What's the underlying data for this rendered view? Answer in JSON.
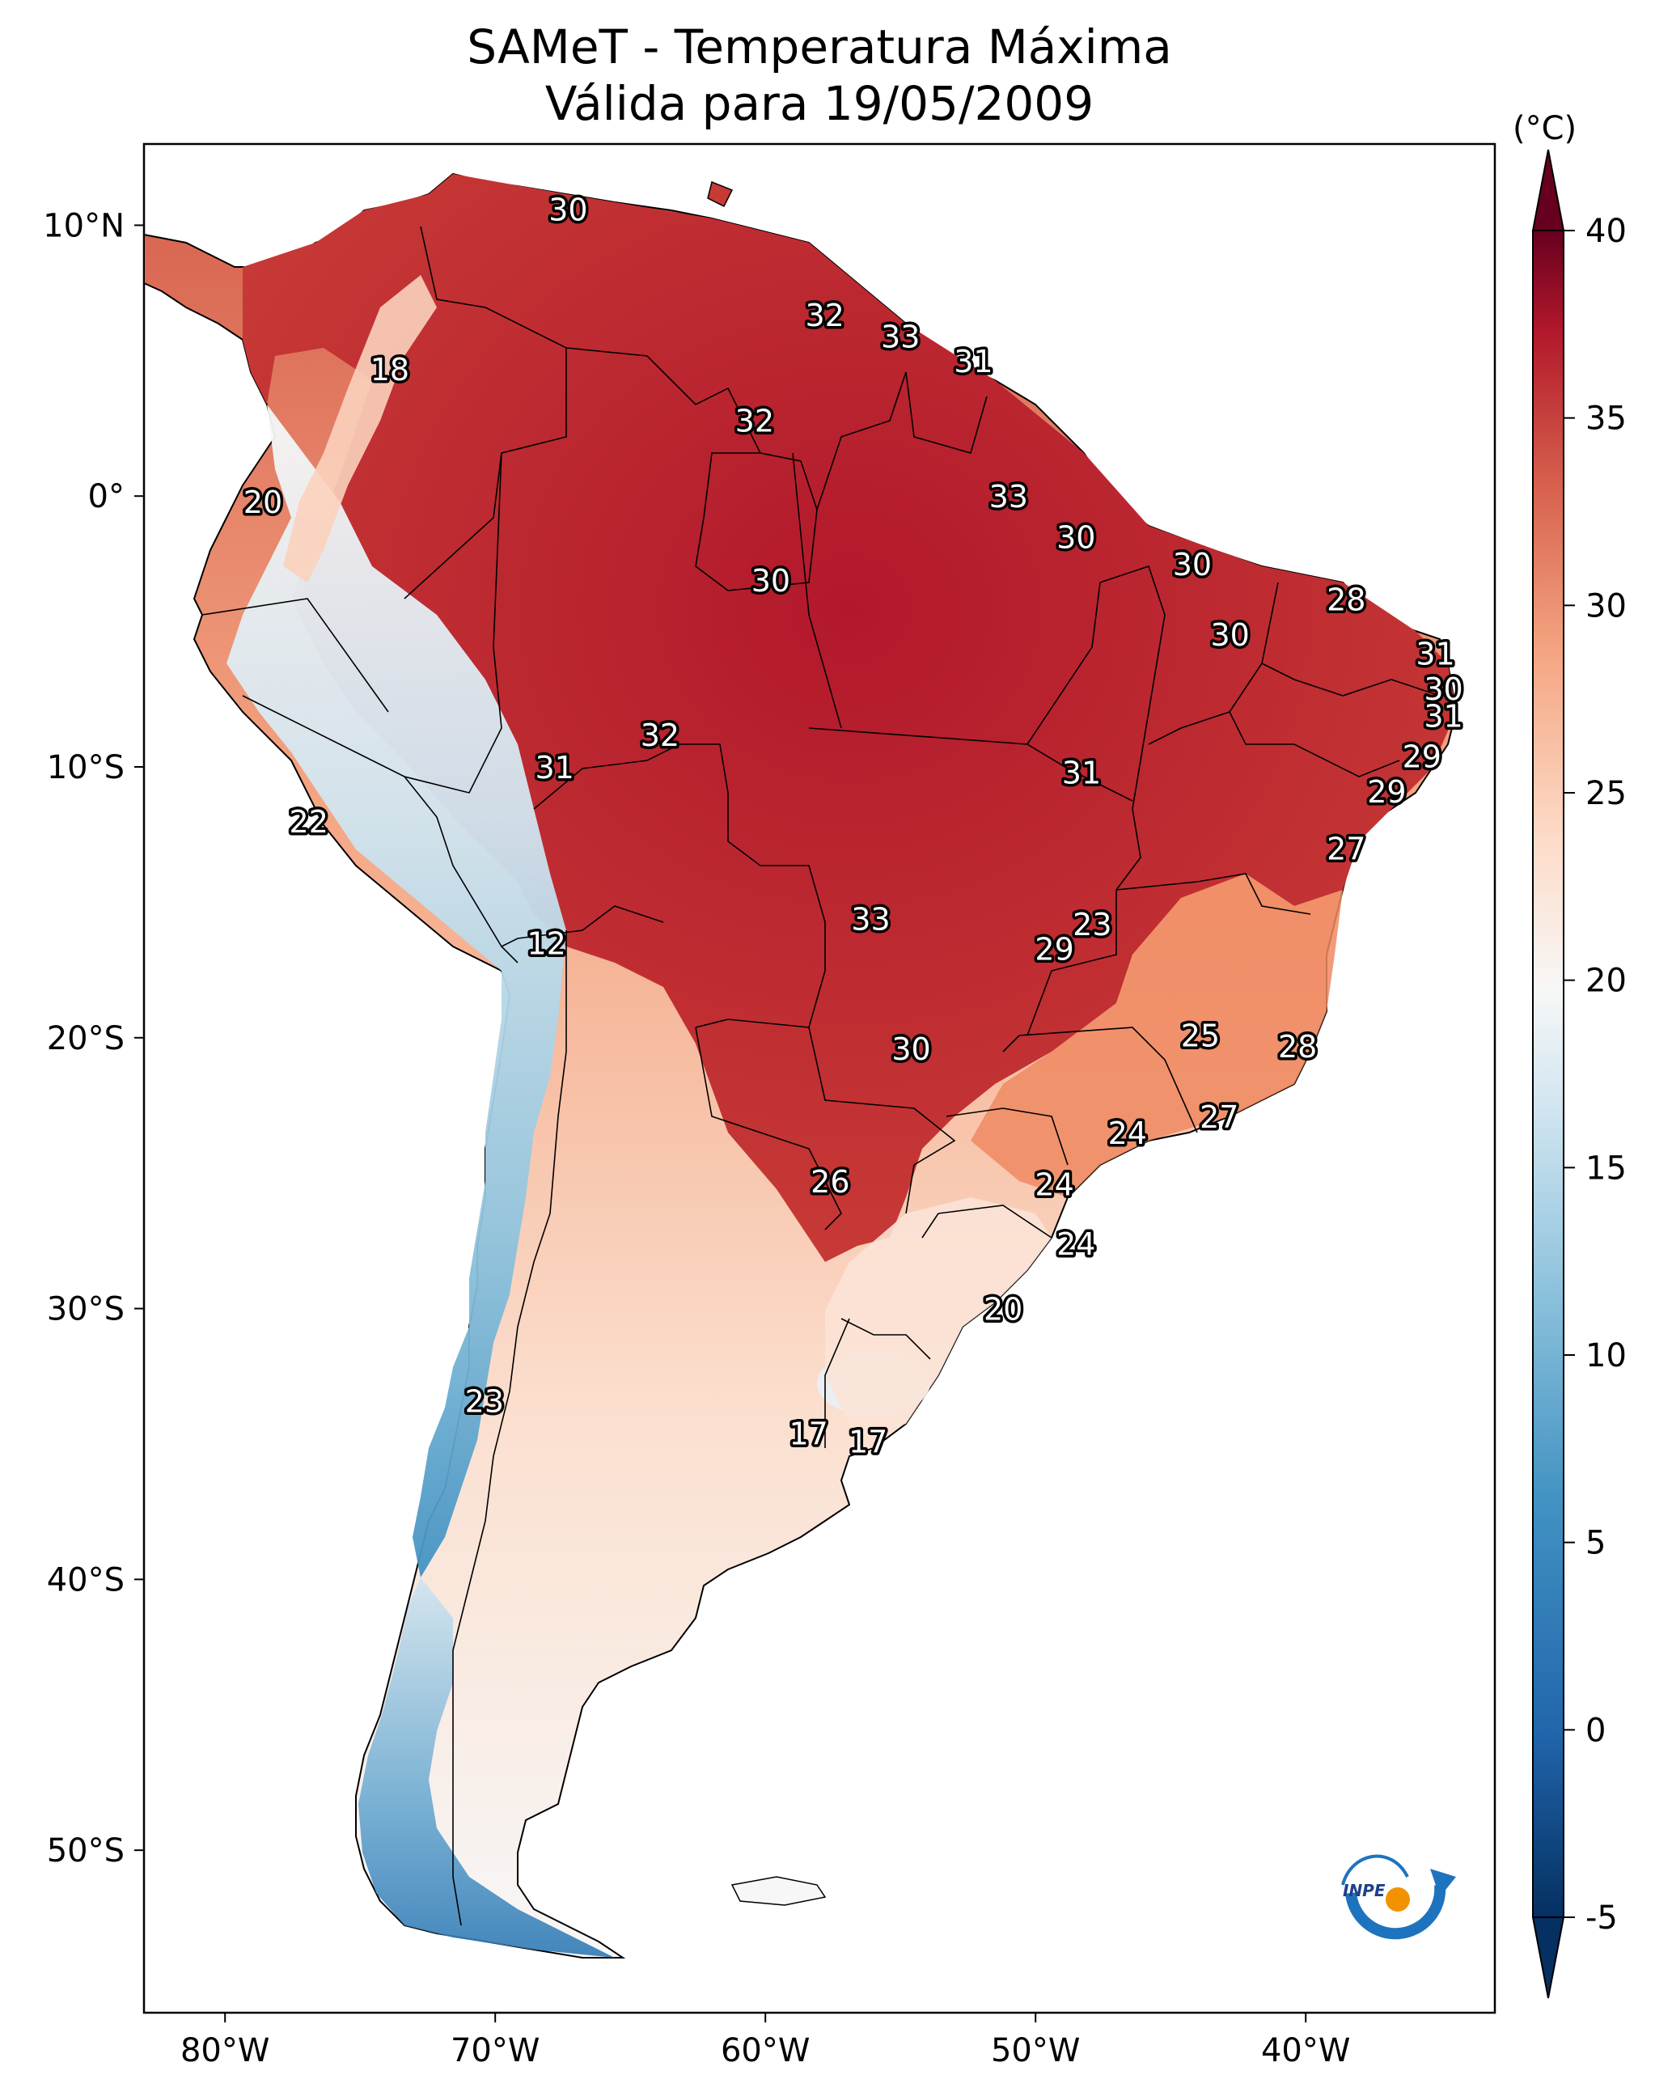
{
  "title": "SAMeT - Temperatura Máxima",
  "subtitle": "Válida para 19/05/2009",
  "colorbar": {
    "unit_label": "(°C)",
    "min": -5,
    "max": 40,
    "ticks": [
      "40",
      "35",
      "30",
      "25",
      "20",
      "15",
      "10",
      "5",
      "0",
      "-5"
    ],
    "tick_values": [
      40,
      35,
      30,
      25,
      20,
      15,
      10,
      5,
      0,
      -5
    ],
    "colormap": "RdBu_r",
    "extend": "both"
  },
  "map": {
    "lon_range": [
      -83,
      -33
    ],
    "lat_range": [
      -56,
      13
    ],
    "lon_ticks": [
      "80°W",
      "70°W",
      "60°W",
      "50°W",
      "40°W"
    ],
    "lon_tick_values": [
      -80,
      -70,
      -60,
      -50,
      -40
    ],
    "lat_ticks": [
      "10°N",
      "0°",
      "10°S",
      "20°S",
      "30°S",
      "40°S",
      "50°S"
    ],
    "lat_tick_values": [
      10,
      0,
      -10,
      -20,
      -30,
      -40,
      -50
    ]
  },
  "city_labels": [
    {
      "text": "30",
      "lon": -67.3,
      "lat": 10.6
    },
    {
      "text": "32",
      "lon": -57.8,
      "lat": 6.7
    },
    {
      "text": "33",
      "lon": -55.0,
      "lat": 5.9
    },
    {
      "text": "31",
      "lon": -52.3,
      "lat": 5.0
    },
    {
      "text": "18",
      "lon": -73.9,
      "lat": 4.7
    },
    {
      "text": "32",
      "lon": -60.4,
      "lat": 2.8
    },
    {
      "text": "20",
      "lon": -78.6,
      "lat": -0.2
    },
    {
      "text": "33",
      "lon": -51.0,
      "lat": 0.0
    },
    {
      "text": "30",
      "lon": -48.5,
      "lat": -1.5
    },
    {
      "text": "30",
      "lon": -44.2,
      "lat": -2.5
    },
    {
      "text": "30",
      "lon": -59.8,
      "lat": -3.1
    },
    {
      "text": "28",
      "lon": -38.5,
      "lat": -3.8
    },
    {
      "text": "30",
      "lon": -42.8,
      "lat": -5.1
    },
    {
      "text": "31",
      "lon": -35.2,
      "lat": -5.8
    },
    {
      "text": "30",
      "lon": -34.9,
      "lat": -7.1
    },
    {
      "text": "31",
      "lon": -34.9,
      "lat": -8.1
    },
    {
      "text": "32",
      "lon": -63.9,
      "lat": -8.8
    },
    {
      "text": "29",
      "lon": -35.7,
      "lat": -9.6
    },
    {
      "text": "31",
      "lon": -67.8,
      "lat": -10.0
    },
    {
      "text": "31",
      "lon": -48.3,
      "lat": -10.2
    },
    {
      "text": "29",
      "lon": -37.0,
      "lat": -10.9
    },
    {
      "text": "22",
      "lon": -76.9,
      "lat": -12.0
    },
    {
      "text": "27",
      "lon": -38.5,
      "lat": -13.0
    },
    {
      "text": "33",
      "lon": -56.1,
      "lat": -15.6
    },
    {
      "text": "23",
      "lon": -47.9,
      "lat": -15.8
    },
    {
      "text": "29",
      "lon": -49.3,
      "lat": -16.7
    },
    {
      "text": "12",
      "lon": -68.1,
      "lat": -16.5
    },
    {
      "text": "25",
      "lon": -43.9,
      "lat": -19.9
    },
    {
      "text": "28",
      "lon": -40.3,
      "lat": -20.3
    },
    {
      "text": "30",
      "lon": -54.6,
      "lat": -20.4
    },
    {
      "text": "27",
      "lon": -43.2,
      "lat": -22.9
    },
    {
      "text": "24",
      "lon": -46.6,
      "lat": -23.5
    },
    {
      "text": "26",
      "lon": -57.6,
      "lat": -25.3
    },
    {
      "text": "24",
      "lon": -49.3,
      "lat": -25.4
    },
    {
      "text": "24",
      "lon": -48.5,
      "lat": -27.6
    },
    {
      "text": "20",
      "lon": -51.2,
      "lat": -30.0
    },
    {
      "text": "23",
      "lon": -70.4,
      "lat": -33.4
    },
    {
      "text": "17",
      "lon": -58.4,
      "lat": -34.6
    },
    {
      "text": "17",
      "lon": -56.2,
      "lat": -34.9
    }
  ],
  "logo_text": "INPE"
}
